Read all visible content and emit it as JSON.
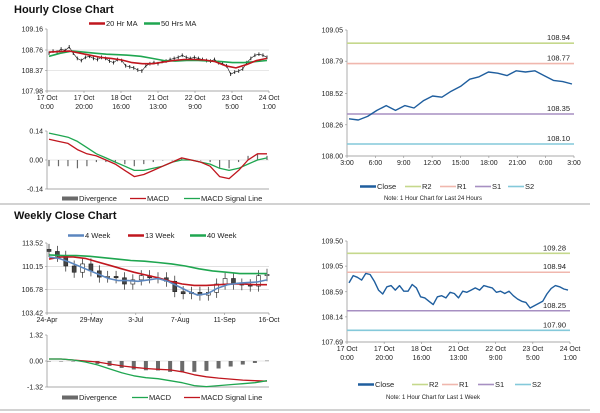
{
  "chart_data": [
    {
      "id": "hourly",
      "type": "line",
      "title": "Hourly Close Chart",
      "price": {
        "ylim": [
          107.98,
          109.16
        ],
        "yticks": [
          "109.16",
          "108.76",
          "108.37",
          "107.98"
        ],
        "ytick_values": [
          109.16,
          108.76,
          108.37,
          107.98
        ],
        "xticks": [
          [
            "17 Oct",
            "0:00"
          ],
          [
            "17 Oct",
            "20:00"
          ],
          [
            "18 Oct",
            "16:00"
          ],
          [
            "21 Oct",
            "13:00"
          ],
          [
            "22 Oct",
            "9:00"
          ],
          [
            "23 Oct",
            "5:00"
          ],
          [
            "24 Oct",
            "1:00"
          ]
        ],
        "legend": [
          "20 Hr MA",
          "50 Hrs MA"
        ],
        "close": [
          108.7,
          108.74,
          108.72,
          108.78,
          108.75,
          108.82,
          108.7,
          108.6,
          108.56,
          108.62,
          108.64,
          108.6,
          108.58,
          108.62,
          108.6,
          108.55,
          108.52,
          108.58,
          108.56,
          108.46,
          108.44,
          108.42,
          108.38,
          108.36,
          108.46,
          108.5,
          108.52,
          108.5,
          108.54,
          108.55,
          108.58,
          108.6,
          108.62,
          108.66,
          108.62,
          108.6,
          108.62,
          108.6,
          108.58,
          108.56,
          108.55,
          108.58,
          108.52,
          108.5,
          108.46,
          108.3,
          108.34,
          108.36,
          108.4,
          108.52,
          108.6,
          108.66,
          108.68,
          108.66,
          108.62
        ],
        "ma20": [
          108.72,
          108.73,
          108.74,
          108.7,
          108.66,
          108.62,
          108.6,
          108.57,
          108.52,
          108.5,
          108.5,
          108.53,
          108.56,
          108.58,
          108.58,
          108.57,
          108.54,
          108.46,
          108.42,
          108.48,
          108.56,
          108.6
        ],
        "ma50": [
          108.64,
          108.7,
          108.74,
          108.72,
          108.7,
          108.68,
          108.67,
          108.66,
          108.64,
          108.6,
          108.56,
          108.55,
          108.56,
          108.56,
          108.55,
          108.54,
          108.52,
          108.52,
          108.54,
          108.56
        ]
      },
      "macd": {
        "ylim": [
          -0.14,
          0.14
        ],
        "yticks": [
          "0.14",
          "0.00",
          "-0.14"
        ],
        "ytick_values": [
          0.14,
          0,
          -0.14
        ],
        "legend": [
          "Divergence",
          "MACD",
          "MACD Signal Line"
        ],
        "macd": [
          0.1,
          0.09,
          0.08,
          0.05,
          0.03,
          0.02,
          0.0,
          -0.02,
          -0.05,
          -0.08,
          -0.07,
          -0.05,
          -0.03,
          -0.01,
          0.01,
          0.0,
          -0.01,
          -0.03,
          -0.08,
          -0.09,
          -0.05,
          0.0,
          0.03,
          0.03
        ],
        "signal": [
          0.13,
          0.12,
          0.11,
          0.09,
          0.06,
          0.03,
          0.01,
          -0.01,
          -0.03,
          -0.05,
          -0.05,
          -0.04,
          -0.03,
          -0.01,
          0.0,
          0.0,
          -0.01,
          -0.02,
          -0.04,
          -0.05,
          -0.04,
          -0.02,
          0.0,
          0.01
        ]
      }
    },
    {
      "id": "hourly_24h",
      "type": "line",
      "ylim": [
        108.0,
        109.05
      ],
      "yticks": [
        "109.05",
        "108.79",
        "108.52",
        "108.26",
        "108.00"
      ],
      "ytick_values": [
        109.05,
        108.79,
        108.52,
        108.26,
        108.0
      ],
      "xticks": [
        "3:00",
        "6:00",
        "9:00",
        "12:00",
        "15:00",
        "18:00",
        "21:00",
        "0:00",
        "3:00"
      ],
      "close": [
        108.31,
        108.3,
        108.33,
        108.38,
        108.42,
        108.38,
        108.42,
        108.4,
        108.46,
        108.5,
        108.49,
        108.54,
        108.58,
        108.64,
        108.66,
        108.7,
        108.69,
        108.67,
        108.71,
        108.7,
        108.71,
        108.67,
        108.63,
        108.62,
        108.6
      ],
      "levels": [
        {
          "name": "R2",
          "value": 108.94,
          "label": "108.94",
          "color": "#c5d88c"
        },
        {
          "name": "R1",
          "value": 108.77,
          "label": "108.77",
          "color": "#f0b7ae"
        },
        {
          "name": "S1",
          "value": 108.35,
          "label": "108.35",
          "color": "#a78fc2"
        },
        {
          "name": "S2",
          "value": 108.1,
          "label": "108.10",
          "color": "#84c9da"
        }
      ],
      "legend": [
        "Close",
        "R2",
        "R1",
        "S1",
        "S2"
      ],
      "note": "Note: 1 Hour Chart for Last 24 Hours"
    },
    {
      "id": "weekly",
      "type": "line",
      "title": "Weekly Close Chart",
      "price": {
        "ylim": [
          103.42,
          113.52
        ],
        "yticks": [
          "113.52",
          "110.15",
          "106.78",
          "103.42"
        ],
        "ytick_values": [
          113.52,
          110.15,
          106.78,
          103.42
        ],
        "xticks": [
          "24-Apr",
          "29-May",
          "3-Jul",
          "7-Aug",
          "11-Sep",
          "16-Oct"
        ],
        "legend": [
          "4 Week",
          "13 Week",
          "40 Week"
        ],
        "close": [
          112.3,
          111.6,
          110.2,
          109.3,
          110.5,
          109.5,
          108.6,
          108.7,
          108.5,
          107.6,
          108.2,
          108.8,
          108.5,
          108.5,
          108.0,
          106.5,
          106.2,
          106.4,
          106.0,
          106.4,
          107.6,
          108.4,
          107.6,
          107.5,
          107.3,
          108.8,
          109.0
        ],
        "wk4": [
          111.5,
          111.3,
          110.8,
          110.2,
          109.6,
          109.0,
          108.4,
          108.1,
          108.1,
          108.0,
          108.2,
          108.4,
          108.0,
          107.3,
          106.6,
          106.0,
          106.2,
          107.0,
          107.5,
          107.7,
          107.8,
          107.9,
          108.2
        ],
        "wk13": [
          111.2,
          111.5,
          111.5,
          111.3,
          110.8,
          110.3,
          109.8,
          109.3,
          108.9,
          108.5,
          108.0,
          107.6,
          107.4,
          107.4,
          107.5,
          107.6,
          107.6,
          107.5,
          107.5
        ],
        "wk40": [
          111.8,
          111.7,
          111.7,
          111.6,
          111.4,
          111.2,
          111.0,
          110.9,
          110.7,
          110.5,
          110.2,
          109.8,
          109.5,
          109.3,
          109.1,
          109.1,
          109.1
        ]
      },
      "macd": {
        "ylim": [
          -1.32,
          1.32
        ],
        "yticks": [
          "1.32",
          "0.00",
          "-1.32"
        ],
        "ytick_values": [
          1.32,
          0,
          -1.32
        ],
        "legend": [
          "Divergence",
          "MACD",
          "MACD Signal Line"
        ],
        "macd": [
          0.1,
          0.1,
          0.05,
          -0.05,
          -0.2,
          -0.4,
          -0.6,
          -0.75,
          -0.85,
          -0.9,
          -1.0,
          -1.1,
          -1.25,
          -1.3,
          -1.25,
          -1.2,
          -1.15,
          -1.1,
          -1.0
        ],
        "signal": [
          0.1,
          0.1,
          0.05,
          0.0,
          -0.05,
          -0.15,
          -0.25,
          -0.32,
          -0.38,
          -0.42,
          -0.45,
          -0.55,
          -0.7,
          -0.8,
          -0.87,
          -0.92,
          -0.97,
          -1.0,
          -1.02
        ]
      }
    },
    {
      "id": "weekly_1w",
      "type": "line",
      "ylim": [
        107.69,
        109.5
      ],
      "yticks": [
        "109.50",
        "109.05",
        "108.59",
        "108.14",
        "107.69"
      ],
      "ytick_values": [
        109.5,
        109.05,
        108.59,
        108.14,
        107.69
      ],
      "xticks": [
        [
          "17 Oct",
          "0:00"
        ],
        [
          "17 Oct",
          "20:00"
        ],
        [
          "18 Oct",
          "16:00"
        ],
        [
          "21 Oct",
          "13:00"
        ],
        [
          "22 Oct",
          "9:00"
        ],
        [
          "23 Oct",
          "5:00"
        ],
        [
          "24 Oct",
          "1:00"
        ]
      ],
      "close": [
        108.75,
        108.88,
        108.85,
        108.8,
        108.92,
        108.9,
        108.78,
        108.62,
        108.55,
        108.68,
        108.7,
        108.62,
        108.7,
        108.6,
        108.6,
        108.72,
        108.66,
        108.5,
        108.48,
        108.42,
        108.36,
        108.5,
        108.52,
        108.48,
        108.58,
        108.56,
        108.48,
        108.6,
        108.58,
        108.62,
        108.66,
        108.62,
        108.7,
        108.68,
        108.66,
        108.58,
        108.6,
        108.56,
        108.6,
        108.52,
        108.46,
        108.42,
        108.4,
        108.3,
        108.34,
        108.38,
        108.42,
        108.55,
        108.65,
        108.7,
        108.68,
        108.64,
        108.62
      ],
      "levels": [
        {
          "name": "R2",
          "value": 109.28,
          "label": "109.28",
          "color": "#c5d88c"
        },
        {
          "name": "R1",
          "value": 108.94,
          "label": "108.94",
          "color": "#f0b7ae"
        },
        {
          "name": "S1",
          "value": 108.25,
          "label": "108.25",
          "color": "#a78fc2"
        },
        {
          "name": "S2",
          "value": 107.9,
          "label": "107.90",
          "color": "#84c9da"
        }
      ],
      "legend": [
        "Close",
        "R2",
        "R1",
        "S1",
        "S2"
      ],
      "note": "Note: 1 Hour Chart for Last 1 Week"
    }
  ],
  "colors": {
    "close": "#1f5e9e",
    "ma20": "#c0161e",
    "ma50": "#1fa650",
    "wk4": "#5b86bf",
    "divergence": "#6a6a6a",
    "axis": "#8c8c8c",
    "grid": "#cfcfcf"
  }
}
